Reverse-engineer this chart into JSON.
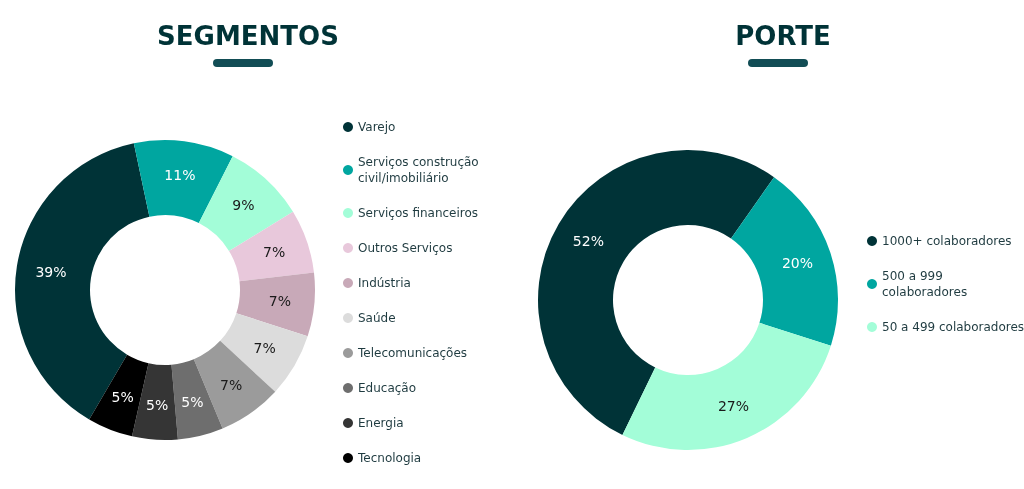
{
  "chart_data": [
    {
      "type": "donut",
      "title": "SEGMENTOS",
      "categories": [
        "Varejo",
        "Serviços construção civil/imobiliário",
        "Serviços financeiros",
        "Outros Serviços",
        "Indústria",
        "Saúde",
        "Telecomunicações",
        "Educação",
        "Energia",
        "Tecnologia"
      ],
      "values": [
        39,
        11,
        9,
        7,
        7,
        7,
        7,
        5,
        5,
        5
      ],
      "value_labels": [
        "39%",
        "11%",
        "9%",
        "7%",
        "7%",
        "7%",
        "7%",
        "5%",
        "5%",
        "5%"
      ],
      "colors": [
        "#003337",
        "#00a6a0",
        "#a3fdd8",
        "#e8c8db",
        "#c8a9b8",
        "#dcdcdc",
        "#9b9b9b",
        "#6e6e6e",
        "#353535",
        "#000000"
      ],
      "legend": "right"
    },
    {
      "type": "donut",
      "title": "PORTE",
      "categories": [
        "1000+ colaboradores",
        "500 a 999 colaboradores",
        "50 a 499 colaboradores"
      ],
      "values": [
        52,
        20,
        27
      ],
      "value_labels": [
        "52%",
        "20%",
        "27%"
      ],
      "colors": [
        "#003337",
        "#00a6a0",
        "#a3fdd8"
      ],
      "legend": "right"
    }
  ]
}
